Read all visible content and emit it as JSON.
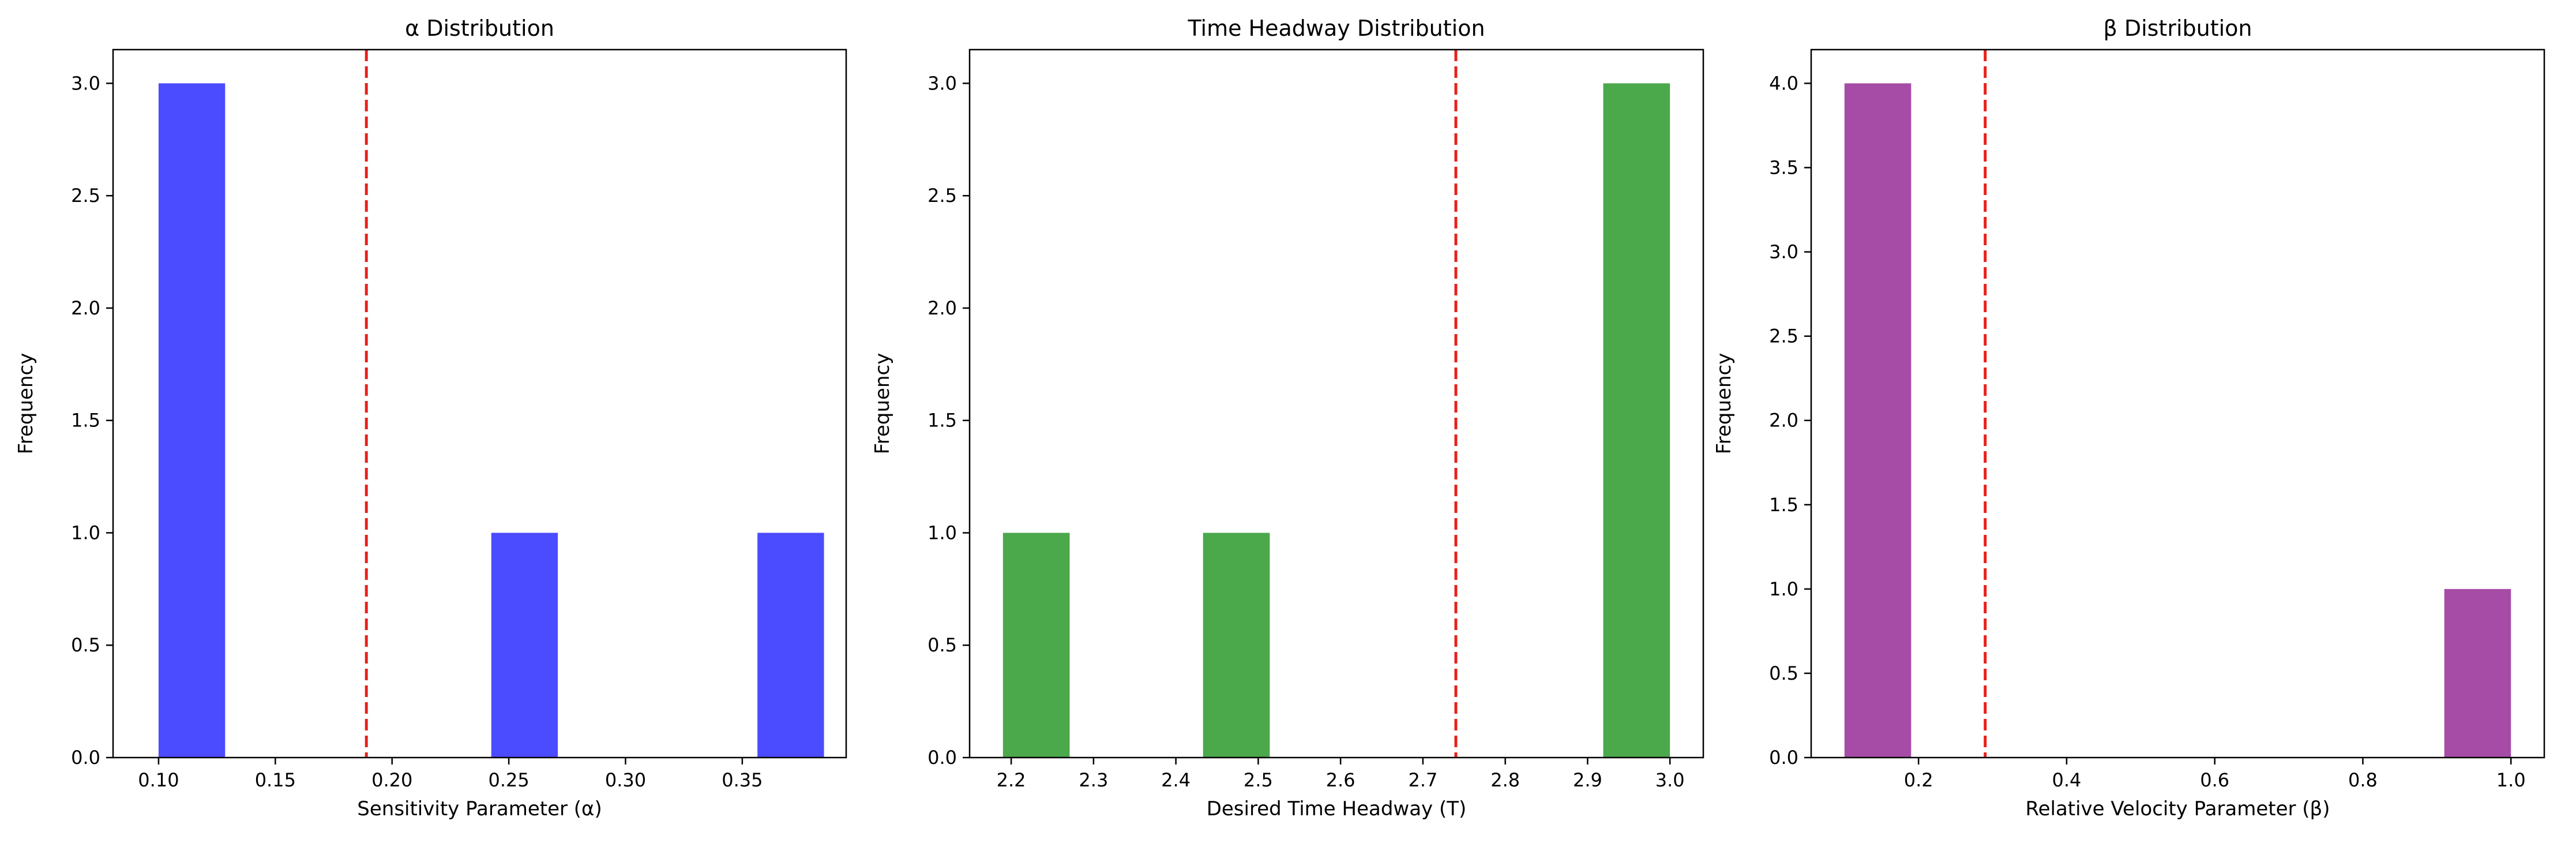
{
  "chart_data": [
    {
      "type": "bar",
      "title": "α Distribution",
      "xlabel": "Sensitivity Parameter (α)",
      "ylabel": "Frequency",
      "xlim": [
        0.0805,
        0.3945
      ],
      "ylim": [
        0,
        3.15
      ],
      "xticks": [
        0.1,
        0.15,
        0.2,
        0.25,
        0.3,
        0.35
      ],
      "xtick_labels": [
        "0.10",
        "0.15",
        "0.20",
        "0.25",
        "0.30",
        "0.35"
      ],
      "yticks": [
        0,
        0.5,
        1.0,
        1.5,
        2.0,
        2.5,
        3.0
      ],
      "ytick_labels": [
        "0.0",
        "0.5",
        "1.0",
        "1.5",
        "2.0",
        "2.5",
        "3.0"
      ],
      "bins": [
        {
          "x0": 0.1,
          "x1": 0.1285,
          "value": 3
        },
        {
          "x0": 0.1285,
          "x1": 0.157,
          "value": 0
        },
        {
          "x0": 0.157,
          "x1": 0.1855,
          "value": 0
        },
        {
          "x0": 0.1855,
          "x1": 0.214,
          "value": 0
        },
        {
          "x0": 0.214,
          "x1": 0.2425,
          "value": 0
        },
        {
          "x0": 0.2425,
          "x1": 0.271,
          "value": 1
        },
        {
          "x0": 0.271,
          "x1": 0.2995,
          "value": 0
        },
        {
          "x0": 0.2995,
          "x1": 0.328,
          "value": 0
        },
        {
          "x0": 0.328,
          "x1": 0.3565,
          "value": 0
        },
        {
          "x0": 0.3565,
          "x1": 0.385,
          "value": 1
        }
      ],
      "mean_line": 0.189,
      "bar_color": "#4b4bff",
      "mean_line_color": "#e8201a",
      "grid": false
    },
    {
      "type": "bar",
      "title": "Time Headway Distribution",
      "xlabel": "Desired Time Headway (T)",
      "ylabel": "Frequency",
      "xlim": [
        2.1495,
        3.0405
      ],
      "ylim": [
        0,
        3.15
      ],
      "xticks": [
        2.2,
        2.3,
        2.4,
        2.5,
        2.6,
        2.7,
        2.8,
        2.9,
        3.0
      ],
      "xtick_labels": [
        "2.2",
        "2.3",
        "2.4",
        "2.5",
        "2.6",
        "2.7",
        "2.8",
        "2.9",
        "3.0"
      ],
      "yticks": [
        0,
        0.5,
        1.0,
        1.5,
        2.0,
        2.5,
        3.0
      ],
      "ytick_labels": [
        "0.0",
        "0.5",
        "1.0",
        "1.5",
        "2.0",
        "2.5",
        "3.0"
      ],
      "bins": [
        {
          "x0": 2.19,
          "x1": 2.271,
          "value": 1
        },
        {
          "x0": 2.271,
          "x1": 2.352,
          "value": 0
        },
        {
          "x0": 2.352,
          "x1": 2.433,
          "value": 0
        },
        {
          "x0": 2.433,
          "x1": 2.514,
          "value": 1
        },
        {
          "x0": 2.514,
          "x1": 2.595,
          "value": 0
        },
        {
          "x0": 2.595,
          "x1": 2.676,
          "value": 0
        },
        {
          "x0": 2.676,
          "x1": 2.757,
          "value": 0
        },
        {
          "x0": 2.757,
          "x1": 2.838,
          "value": 0
        },
        {
          "x0": 2.838,
          "x1": 2.919,
          "value": 0
        },
        {
          "x0": 2.919,
          "x1": 3.0,
          "value": 3
        }
      ],
      "mean_line": 2.74,
      "bar_color": "#4ba84b",
      "mean_line_color": "#e8201a",
      "grid": false
    },
    {
      "type": "bar",
      "title": "β Distribution",
      "xlabel": "Relative Velocity Parameter (β)",
      "ylabel": "Frequency",
      "xlim": [
        0.055,
        1.045
      ],
      "ylim": [
        0,
        4.2
      ],
      "xticks": [
        0.2,
        0.4,
        0.6,
        0.8,
        1.0
      ],
      "xtick_labels": [
        "0.2",
        "0.4",
        "0.6",
        "0.8",
        "1.0"
      ],
      "yticks": [
        0,
        0.5,
        1.0,
        1.5,
        2.0,
        2.5,
        3.0,
        3.5,
        4.0
      ],
      "ytick_labels": [
        "0.0",
        "0.5",
        "1.0",
        "1.5",
        "2.0",
        "2.5",
        "3.0",
        "3.5",
        "4.0"
      ],
      "bins": [
        {
          "x0": 0.1,
          "x1": 0.19,
          "value": 4
        },
        {
          "x0": 0.19,
          "x1": 0.28,
          "value": 0
        },
        {
          "x0": 0.28,
          "x1": 0.37,
          "value": 0
        },
        {
          "x0": 0.37,
          "x1": 0.46,
          "value": 0
        },
        {
          "x0": 0.46,
          "x1": 0.55,
          "value": 0
        },
        {
          "x0": 0.55,
          "x1": 0.64,
          "value": 0
        },
        {
          "x0": 0.64,
          "x1": 0.73,
          "value": 0
        },
        {
          "x0": 0.73,
          "x1": 0.82,
          "value": 0
        },
        {
          "x0": 0.82,
          "x1": 0.91,
          "value": 0
        },
        {
          "x0": 0.91,
          "x1": 1.0,
          "value": 1
        }
      ],
      "mean_line": 0.29,
      "bar_color": "#a64ca6",
      "mean_line_color": "#e8201a",
      "grid": false
    }
  ]
}
